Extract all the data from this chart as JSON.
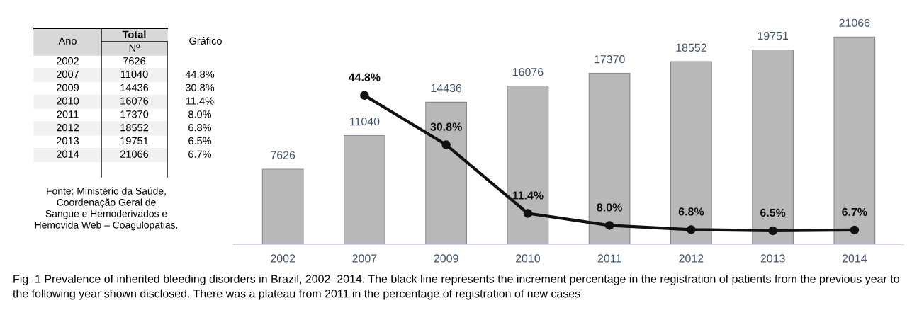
{
  "chart_data": {
    "type": "bar",
    "categories": [
      "2002",
      "2007",
      "2009",
      "2010",
      "2011",
      "2012",
      "2013",
      "2014"
    ],
    "series": [
      {
        "color": "#b8b8b8",
        "values": [
          7626,
          11040,
          14436,
          16076,
          17370,
          18552,
          19751,
          21066
        ],
        "value_labels": [
          "7626",
          "11040",
          "14436",
          "16076",
          "17370",
          "18552",
          "19751",
          "21066"
        ]
      },
      {
        "type": "line",
        "axis": "y2",
        "color": "#111111",
        "marker": "circle",
        "line_style": "solid",
        "values": [
          null,
          44.8,
          30.8,
          11.4,
          8.0,
          6.8,
          6.5,
          6.7
        ],
        "value_labels": [
          null,
          "44.8%",
          "30.8%",
          "11.4%",
          "8.0%",
          "6.8%",
          "6.5%",
          "6.7%"
        ]
      }
    ],
    "data_labels": true,
    "grid": false,
    "legend": false,
    "tick_labels": "x",
    "annotations": [
      "Ano",
      "Total",
      "Nº",
      "Gráfico",
      "Fonte: Ministério da Saúde,\nCoordenação Geral de\nSangue e Hemoderivados e\nHemovida Web – Coagulopatias.",
      "Fig. 1 Prevalence of inherited bleeding disorders in Brazil, 2002–2014. The black line represents the increment percentage in the registration of patients from the previous year to the following year shown disclosed. There was a plateau from 2011 in the percentage of registration of new cases"
    ]
  }
}
